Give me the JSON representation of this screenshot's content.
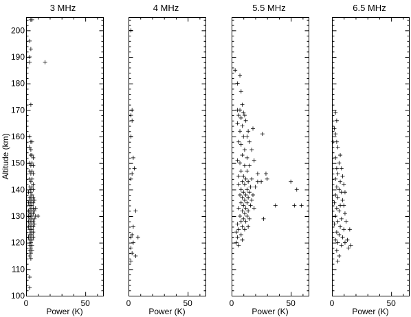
{
  "chart_data": {
    "type": "scatter",
    "marker": "plus",
    "ylabel": "Altitude (km)",
    "xlabel": "Power (K)",
    "ylim": [
      100,
      205
    ],
    "xlim": [
      0,
      65
    ],
    "yticks": [
      100,
      110,
      120,
      130,
      140,
      150,
      160,
      170,
      180,
      190,
      200
    ],
    "xticks": [
      0,
      50
    ],
    "panels": [
      {
        "title": "3 MHz",
        "points": [
          [
            4,
            204
          ],
          [
            5,
            204
          ],
          [
            3,
            196
          ],
          [
            4,
            193
          ],
          [
            3,
            190
          ],
          [
            3,
            188
          ],
          [
            16,
            188
          ],
          [
            4,
            172
          ],
          [
            3,
            160
          ],
          [
            4,
            158
          ],
          [
            5,
            158
          ],
          [
            3,
            156
          ],
          [
            4,
            155
          ],
          [
            4,
            153
          ],
          [
            5,
            153
          ],
          [
            6,
            152
          ],
          [
            3,
            150
          ],
          [
            5,
            150
          ],
          [
            4,
            149
          ],
          [
            6,
            149
          ],
          [
            3,
            147
          ],
          [
            5,
            147
          ],
          [
            4,
            146
          ],
          [
            6,
            146
          ],
          [
            3,
            144
          ],
          [
            5,
            144
          ],
          [
            4,
            143
          ],
          [
            6,
            142
          ],
          [
            3,
            141
          ],
          [
            5,
            141
          ],
          [
            4,
            140
          ],
          [
            6,
            140
          ],
          [
            2,
            139
          ],
          [
            4,
            139
          ],
          [
            5,
            138
          ],
          [
            3,
            137
          ],
          [
            4,
            137
          ],
          [
            6,
            137
          ],
          [
            3,
            136
          ],
          [
            5,
            136
          ],
          [
            7,
            136
          ],
          [
            2,
            135
          ],
          [
            4,
            135
          ],
          [
            6,
            135
          ],
          [
            3,
            134
          ],
          [
            5,
            134
          ],
          [
            4,
            133
          ],
          [
            6,
            133
          ],
          [
            8,
            133
          ],
          [
            2,
            132
          ],
          [
            3,
            132
          ],
          [
            5,
            132
          ],
          [
            7,
            132
          ],
          [
            3,
            131
          ],
          [
            4,
            131
          ],
          [
            6,
            131
          ],
          [
            2,
            130
          ],
          [
            4,
            130
          ],
          [
            5,
            130
          ],
          [
            8,
            130
          ],
          [
            10,
            130
          ],
          [
            3,
            129
          ],
          [
            5,
            129
          ],
          [
            7,
            129
          ],
          [
            2,
            128
          ],
          [
            4,
            128
          ],
          [
            6,
            128
          ],
          [
            3,
            127
          ],
          [
            5,
            127
          ],
          [
            7,
            127
          ],
          [
            2,
            126
          ],
          [
            4,
            126
          ],
          [
            6,
            126
          ],
          [
            3,
            125
          ],
          [
            5,
            125
          ],
          [
            4,
            124
          ],
          [
            6,
            124
          ],
          [
            3,
            123
          ],
          [
            5,
            123
          ],
          [
            2,
            122
          ],
          [
            4,
            122
          ],
          [
            6,
            122
          ],
          [
            3,
            121
          ],
          [
            5,
            121
          ],
          [
            4,
            120
          ],
          [
            3,
            119
          ],
          [
            5,
            119
          ],
          [
            4,
            118
          ],
          [
            3,
            117
          ],
          [
            5,
            117
          ],
          [
            4,
            116
          ],
          [
            3,
            115
          ],
          [
            4,
            114
          ],
          [
            3,
            107
          ],
          [
            3,
            103
          ]
        ]
      },
      {
        "title": "4 MHz",
        "points": [
          [
            2,
            200
          ],
          [
            3,
            170
          ],
          [
            2,
            168
          ],
          [
            3,
            166
          ],
          [
            2,
            160
          ],
          [
            4,
            152
          ],
          [
            5,
            148
          ],
          [
            3,
            146
          ],
          [
            2,
            144
          ],
          [
            6,
            132
          ],
          [
            4,
            126
          ],
          [
            3,
            123
          ],
          [
            2,
            122
          ],
          [
            8,
            122
          ],
          [
            4,
            120
          ],
          [
            2,
            118
          ],
          [
            3,
            116
          ],
          [
            6,
            115
          ],
          [
            2,
            113
          ]
        ]
      },
      {
        "title": "5.5 MHz",
        "points": [
          [
            3,
            185
          ],
          [
            7,
            183
          ],
          [
            5,
            180
          ],
          [
            8,
            177
          ],
          [
            9,
            172
          ],
          [
            5,
            170
          ],
          [
            7,
            170
          ],
          [
            10,
            169
          ],
          [
            6,
            168
          ],
          [
            11,
            168
          ],
          [
            8,
            167
          ],
          [
            12,
            166
          ],
          [
            5,
            165
          ],
          [
            9,
            164
          ],
          [
            14,
            162
          ],
          [
            7,
            162
          ],
          [
            18,
            163
          ],
          [
            10,
            160
          ],
          [
            13,
            160
          ],
          [
            26,
            161
          ],
          [
            6,
            158
          ],
          [
            15,
            158
          ],
          [
            8,
            157
          ],
          [
            11,
            155
          ],
          [
            17,
            155
          ],
          [
            9,
            153
          ],
          [
            13,
            152
          ],
          [
            5,
            151
          ],
          [
            19,
            151
          ],
          [
            7,
            150
          ],
          [
            11,
            149
          ],
          [
            15,
            149
          ],
          [
            8,
            147
          ],
          [
            13,
            147
          ],
          [
            22,
            146
          ],
          [
            6,
            145
          ],
          [
            10,
            145
          ],
          [
            29,
            146
          ],
          [
            12,
            144
          ],
          [
            17,
            144
          ],
          [
            9,
            143
          ],
          [
            14,
            143
          ],
          [
            22,
            143
          ],
          [
            25,
            143
          ],
          [
            30,
            144
          ],
          [
            50,
            143
          ],
          [
            6,
            142
          ],
          [
            11,
            142
          ],
          [
            16,
            141
          ],
          [
            20,
            141
          ],
          [
            8,
            140
          ],
          [
            13,
            140
          ],
          [
            55,
            140
          ],
          [
            10,
            139
          ],
          [
            15,
            139
          ],
          [
            7,
            138
          ],
          [
            12,
            138
          ],
          [
            18,
            138
          ],
          [
            9,
            137
          ],
          [
            14,
            137
          ],
          [
            11,
            136
          ],
          [
            17,
            136
          ],
          [
            8,
            135
          ],
          [
            13,
            135
          ],
          [
            10,
            134
          ],
          [
            16,
            134
          ],
          [
            37,
            134
          ],
          [
            53,
            134
          ],
          [
            59,
            134
          ],
          [
            6,
            133
          ],
          [
            12,
            133
          ],
          [
            19,
            133
          ],
          [
            9,
            132
          ],
          [
            14,
            132
          ],
          [
            11,
            131
          ],
          [
            7,
            130
          ],
          [
            13,
            130
          ],
          [
            10,
            129
          ],
          [
            15,
            129
          ],
          [
            27,
            129
          ],
          [
            8,
            128
          ],
          [
            12,
            128
          ],
          [
            5,
            127
          ],
          [
            9,
            126
          ],
          [
            14,
            126
          ],
          [
            6,
            125
          ],
          [
            11,
            125
          ],
          [
            4,
            124
          ],
          [
            8,
            123
          ],
          [
            5,
            122
          ],
          [
            9,
            121
          ],
          [
            4,
            120
          ],
          [
            6,
            119
          ]
        ]
      },
      {
        "title": "6.5 MHz",
        "points": [
          [
            3,
            169
          ],
          [
            4,
            166
          ],
          [
            2,
            163
          ],
          [
            3,
            161
          ],
          [
            1,
            158
          ],
          [
            4,
            158
          ],
          [
            5,
            156
          ],
          [
            7,
            153
          ],
          [
            3,
            152
          ],
          [
            6,
            150
          ],
          [
            4,
            148
          ],
          [
            8,
            148
          ],
          [
            5,
            146
          ],
          [
            9,
            145
          ],
          [
            3,
            144
          ],
          [
            7,
            143
          ],
          [
            10,
            142
          ],
          [
            4,
            141
          ],
          [
            6,
            140
          ],
          [
            8,
            139
          ],
          [
            11,
            139
          ],
          [
            3,
            138
          ],
          [
            5,
            137
          ],
          [
            9,
            136
          ],
          [
            2,
            135
          ],
          [
            7,
            134
          ],
          [
            10,
            134
          ],
          [
            4,
            133
          ],
          [
            6,
            132
          ],
          [
            11,
            131
          ],
          [
            3,
            130
          ],
          [
            8,
            129
          ],
          [
            5,
            128
          ],
          [
            12,
            128
          ],
          [
            2,
            127
          ],
          [
            7,
            126
          ],
          [
            10,
            125
          ],
          [
            4,
            124
          ],
          [
            15,
            125
          ],
          [
            6,
            123
          ],
          [
            9,
            122
          ],
          [
            3,
            121
          ],
          [
            13,
            121
          ],
          [
            5,
            120
          ],
          [
            11,
            120
          ],
          [
            8,
            119
          ],
          [
            16,
            119
          ],
          [
            14,
            118
          ],
          [
            4,
            117
          ],
          [
            6,
            115
          ],
          [
            5,
            113
          ]
        ]
      }
    ]
  }
}
